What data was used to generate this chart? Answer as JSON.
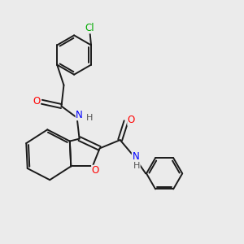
{
  "background_color": "#ebebeb",
  "bond_color": "#1a1a1a",
  "bond_width": 1.4,
  "atom_colors": {
    "N": "#0000ff",
    "O": "#ff0000",
    "Cl": "#00aa00",
    "H": "#555555"
  },
  "font_size": 8.5
}
